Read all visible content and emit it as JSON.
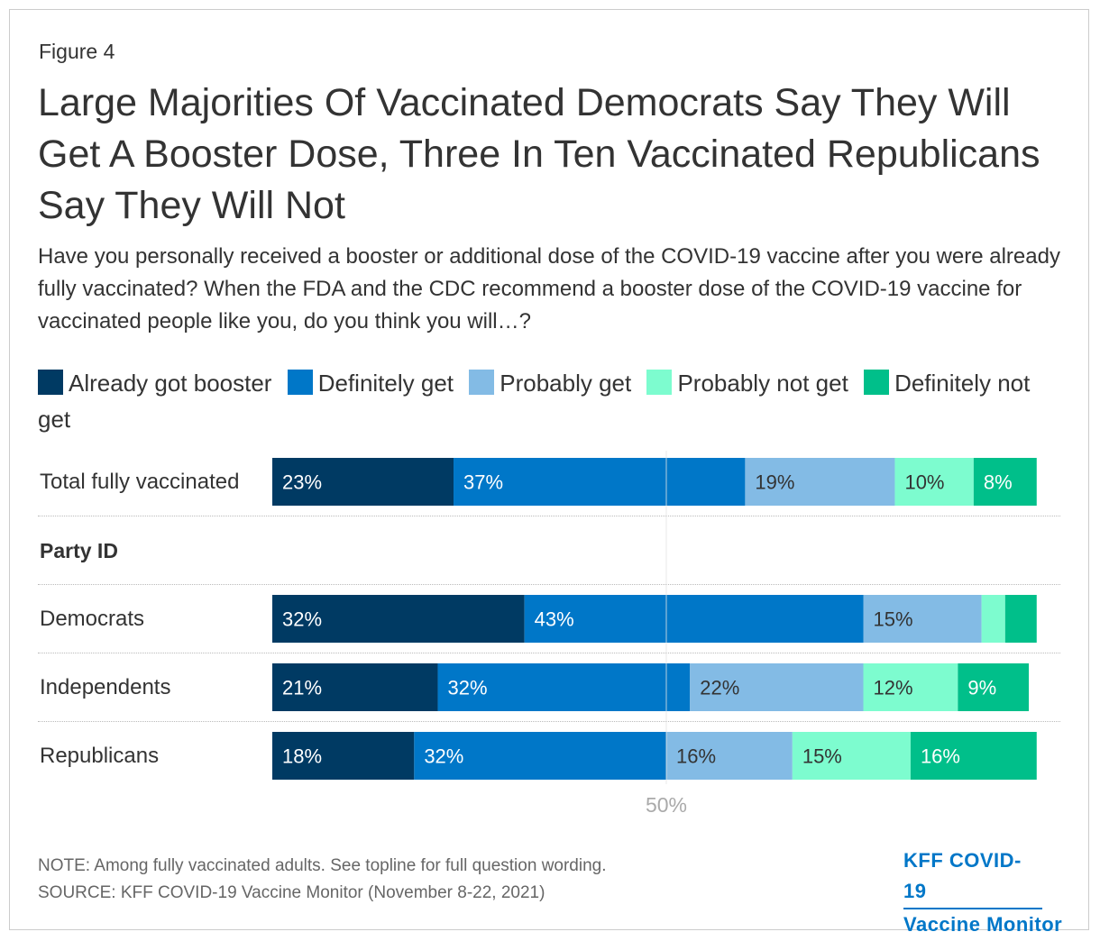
{
  "header": {
    "figure_label": "Figure 4",
    "title": "Large Majorities Of Vaccinated Democrats Say They Will Get A Booster Dose, Three In Ten Vaccinated Republicans Say They Will Not",
    "subtitle": "Have you personally received a booster or additional dose of the COVID-19 vaccine after you were already fully vaccinated? When the FDA and the CDC recommend a booster dose of the COVID-19 vaccine for vaccinated people like you, do you think you will…?"
  },
  "legend": [
    {
      "label": "Already got booster",
      "color": "#003a63"
    },
    {
      "label": "Definitely get",
      "color": "#0077c8"
    },
    {
      "label": "Probably get",
      "color": "#83bbe5"
    },
    {
      "label": "Probably not get",
      "color": "#7dfccf"
    },
    {
      "label": "Definitely not get",
      "color": "#00bf8a"
    }
  ],
  "group_label": "Party ID",
  "footer": {
    "note": "NOTE: Among fully vaccinated adults. See topline for full question wording.",
    "source": "SOURCE: KFF COVID-19 Vaccine Monitor (November 8-22, 2021)",
    "logo_line1": "KFF COVID-19",
    "logo_line2": "Vaccine Monitor"
  },
  "chart_data": {
    "type": "bar",
    "orientation": "horizontal",
    "stacked": true,
    "xlim": [
      0,
      100
    ],
    "x_tick_labels": [
      "50%"
    ],
    "reference_line": 50,
    "categories": [
      "Total fully vaccinated",
      "Democrats",
      "Independents",
      "Republicans"
    ],
    "series": [
      {
        "name": "Already got booster",
        "values": [
          23,
          32,
          21,
          18
        ],
        "labels": [
          "23%",
          "32%",
          "21%",
          "18%"
        ]
      },
      {
        "name": "Definitely get",
        "values": [
          37,
          43,
          32,
          32
        ],
        "labels": [
          "37%",
          "43%",
          "32%",
          "32%"
        ]
      },
      {
        "name": "Probably get",
        "values": [
          19,
          15,
          22,
          16
        ],
        "labels": [
          "19%",
          "15%",
          "22%",
          "16%"
        ]
      },
      {
        "name": "Probably not get",
        "values": [
          10,
          3,
          12,
          15
        ],
        "labels": [
          "10%",
          "",
          "12%",
          "15%"
        ]
      },
      {
        "name": "Definitely not get",
        "values": [
          8,
          4,
          9,
          16
        ],
        "labels": [
          "8%",
          "",
          "9%",
          "16%"
        ]
      }
    ]
  }
}
